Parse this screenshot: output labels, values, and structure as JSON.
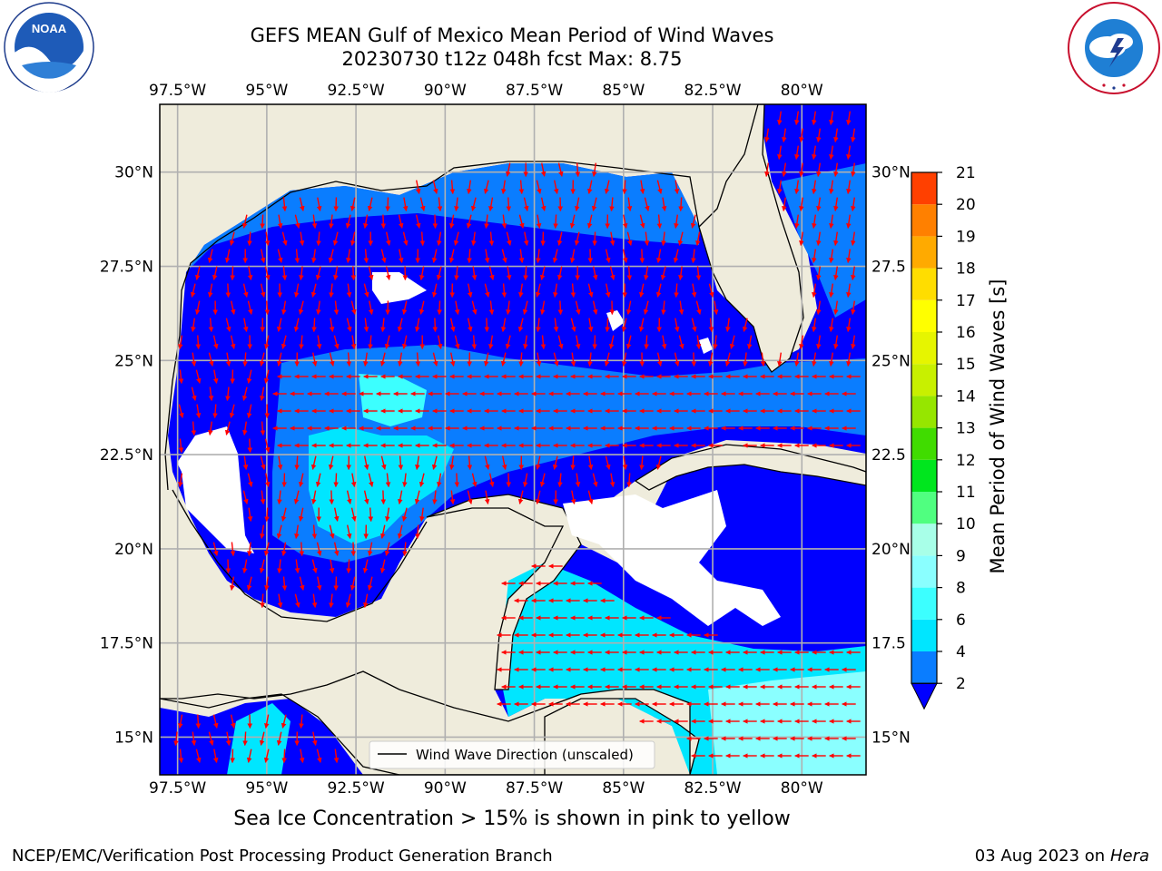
{
  "header": {
    "title_line1": "GEFS MEAN Gulf of Mexico Mean Period of Wind Waves",
    "title_line2": "20230730 t12z 048h fcst   Max: 8.75"
  },
  "logos": {
    "noaa_text": "NOAA",
    "noaa_ring": "NATIONAL OCEANIC AND ATMOSPHERIC ADMINISTRATION · U.S. DEPARTMENT OF COMMERCE",
    "nws_ring": "NATIONAL WEATHER SERVICE"
  },
  "map": {
    "lon_labels": [
      "97.5°W",
      "95°W",
      "92.5°W",
      "90°W",
      "87.5°W",
      "85°W",
      "82.5°W",
      "80°W"
    ],
    "lon_values": [
      -97.5,
      -95,
      -92.5,
      -90,
      -87.5,
      -85,
      -82.5,
      -80
    ],
    "lat_labels": [
      "30°N",
      "27.5°N",
      "25°N",
      "22.5°N",
      "20°N",
      "17.5°N",
      "15°N"
    ],
    "lat_right_labels": [
      "30°N",
      "27.5",
      "25°N",
      "22.5",
      "20°N",
      "17.5",
      "15°N"
    ],
    "lat_values": [
      30,
      27.5,
      25,
      22.5,
      20,
      17.5,
      15
    ],
    "extent": {
      "lon_min": -98,
      "lon_max": -78.2,
      "lat_min": 14,
      "lat_max": 31.8
    },
    "legend_label": "Wind Wave Direction (unscaled)",
    "land_color": "#efecdc",
    "arrow_color": "#ff0000"
  },
  "colorbar": {
    "label": "Mean Period of Wind Waves [s]",
    "ticks": [
      "2",
      "4",
      "6",
      "8",
      "9",
      "10",
      "11",
      "12",
      "13",
      "14",
      "15",
      "16",
      "17",
      "18",
      "19",
      "20",
      "21"
    ],
    "colors": [
      "#0a7dff",
      "#00e6ff",
      "#3cffff",
      "#8affff",
      "#a8ffe8",
      "#50ff80",
      "#00e61e",
      "#40dc00",
      "#96e600",
      "#c8f000",
      "#e6f500",
      "#ffff00",
      "#ffdd00",
      "#ffaa00",
      "#ff8000",
      "#ff4000",
      "#ff0000"
    ],
    "extend_color": "#0000ff"
  },
  "footer": {
    "caption": "Sea Ice Concentration > 15% is shown in pink to yellow",
    "credit": "NCEP/EMC/Verification Post Processing Product Generation Branch",
    "date": "03 Aug 2023 on",
    "machine": "Hera"
  }
}
